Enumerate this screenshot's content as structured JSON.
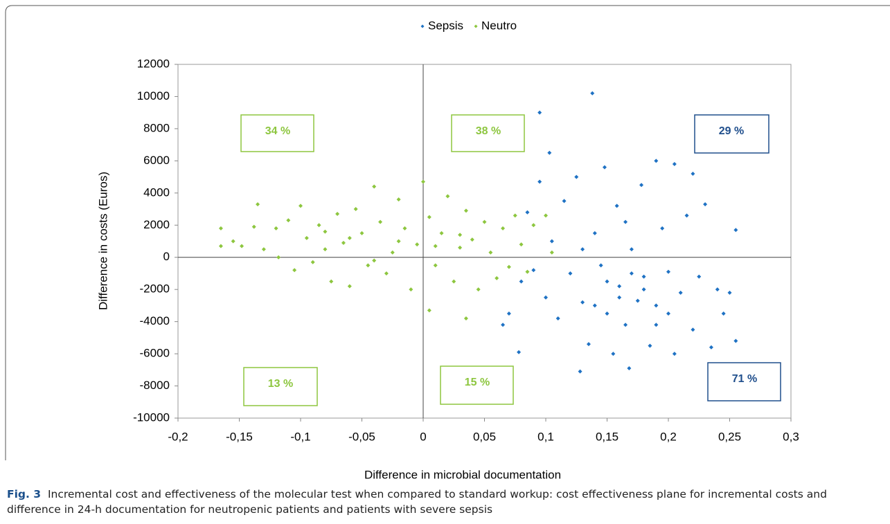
{
  "chart_data": {
    "type": "scatter",
    "x_label": "Difference in microbial documentation",
    "y_label": "Difference in costs (Euros)",
    "caption_label": "Fig. 3",
    "caption": "Incremental cost and effectiveness of the molecular test when compared to standard workup: cost effectiveness plane for incremental costs and difference in 24-h documentation for neutropenic patients and patients with severe sepsis",
    "legend": "top",
    "xlim": [
      -0.2,
      0.3
    ],
    "ylim": [
      -10000,
      12000
    ],
    "xticks": [
      {
        "value": -0.2,
        "label": "-0,2"
      },
      {
        "value": -0.15,
        "label": "-0,15"
      },
      {
        "value": -0.1,
        "label": "-0,1"
      },
      {
        "value": -0.05,
        "label": "-0,05"
      },
      0,
      {
        "value": 0.05,
        "label": "0,05"
      },
      {
        "value": 0.1,
        "label": "0,1"
      },
      {
        "value": 0.15,
        "label": "0,15"
      },
      {
        "value": 0.2,
        "label": "0,2"
      },
      {
        "value": 0.25,
        "label": "0,25"
      },
      {
        "value": 0.3,
        "label": "0,3"
      }
    ],
    "yticks": [
      -10000,
      -8000,
      -6000,
      -4000,
      -2000,
      0,
      2000,
      4000,
      6000,
      8000,
      10000,
      12000
    ],
    "series": [
      {
        "name": "Sepsis",
        "color": "#1f72c4",
        "x": [
          0.065,
          0.07,
          0.078,
          0.08,
          0.085,
          0.09,
          0.095,
          0.095,
          0.1,
          0.103,
          0.105,
          0.11,
          0.115,
          0.12,
          0.125,
          0.128,
          0.13,
          0.135,
          0.138,
          0.14,
          0.145,
          0.148,
          0.15,
          0.155,
          0.158,
          0.16,
          0.165,
          0.168,
          0.17,
          0.175,
          0.178,
          0.18,
          0.185,
          0.19,
          0.19,
          0.195,
          0.2,
          0.205,
          0.205,
          0.21,
          0.215,
          0.22,
          0.22,
          0.225,
          0.23,
          0.235,
          0.24,
          0.245,
          0.25,
          0.255,
          0.255,
          0.15,
          0.16,
          0.17,
          0.18,
          0.14,
          0.2,
          0.165,
          0.13,
          0.19
        ],
        "values": [
          -4200,
          -3500,
          -5900,
          -1500,
          2800,
          -800,
          9000,
          4700,
          -2500,
          6500,
          1000,
          -3800,
          3500,
          -1000,
          5000,
          -7100,
          -2800,
          -5400,
          10200,
          1500,
          -500,
          5600,
          -3500,
          -6000,
          3200,
          -1800,
          -4200,
          -6900,
          500,
          -2700,
          4500,
          -1200,
          -5500,
          6000,
          -3000,
          1800,
          -900,
          -6000,
          5800,
          -2200,
          2600,
          -4500,
          5200,
          -1200,
          3300,
          -5600,
          -2000,
          -3500,
          -2200,
          1700,
          -5200,
          -1500,
          -2500,
          -1000,
          -2000,
          -3000,
          -3500,
          2200,
          500,
          -4200
        ]
      },
      {
        "name": "Neutro",
        "color": "#8dc63f",
        "x": [
          -0.165,
          -0.165,
          -0.155,
          -0.148,
          -0.135,
          -0.138,
          -0.13,
          -0.12,
          -0.118,
          -0.11,
          -0.105,
          -0.1,
          -0.095,
          -0.09,
          -0.085,
          -0.08,
          -0.075,
          -0.07,
          -0.065,
          -0.06,
          -0.055,
          -0.05,
          -0.045,
          -0.04,
          -0.035,
          -0.03,
          -0.025,
          -0.02,
          -0.015,
          -0.01,
          -0.005,
          0,
          0.005,
          0.005,
          0.01,
          0.015,
          0.02,
          0.025,
          0.03,
          0.035,
          0.035,
          0.04,
          0.045,
          0.05,
          0.055,
          0.06,
          0.065,
          0.07,
          0.075,
          0.08,
          0.085,
          0.09,
          0.1,
          0.105,
          -0.06,
          -0.02,
          0.01,
          -0.04,
          0.03,
          -0.08
        ],
        "values": [
          1800,
          700,
          1000,
          700,
          3300,
          1900,
          500,
          1800,
          0,
          2300,
          -800,
          3200,
          1200,
          -300,
          2000,
          500,
          -1500,
          2700,
          900,
          -1800,
          3000,
          1500,
          -500,
          4400,
          2200,
          -1000,
          300,
          3600,
          1800,
          -2000,
          800,
          4700,
          -3300,
          2500,
          -500,
          1500,
          3800,
          -1500,
          600,
          -3800,
          2900,
          1100,
          -2000,
          2200,
          300,
          -1300,
          1800,
          -600,
          2600,
          800,
          -900,
          2000,
          2600,
          300,
          1200,
          1000,
          700,
          -200,
          1400,
          1600
        ]
      }
    ],
    "annotations": [
      {
        "text": "34 %",
        "color": "#8dc63f"
      },
      {
        "text": "38 %",
        "color": "#8dc63f"
      },
      {
        "text": "29 %",
        "color": "#1f4e8c"
      },
      {
        "text": "13 %",
        "color": "#8dc63f"
      },
      {
        "text": "15 %",
        "color": "#8dc63f"
      },
      {
        "text": "71 %",
        "color": "#1f4e8c"
      }
    ]
  }
}
